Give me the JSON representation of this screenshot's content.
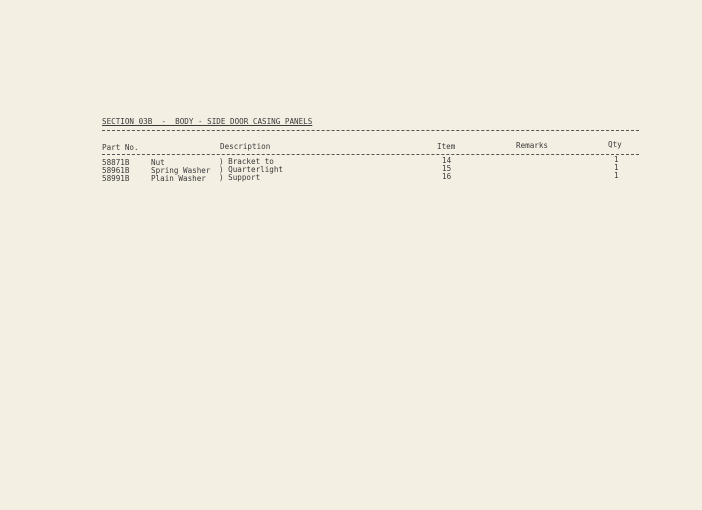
{
  "title": "SECTION 03B  -  BODY - SIDE DOOR CASING PANELS",
  "columns": {
    "part_no": "Part No.",
    "description": "Description",
    "item": "Item",
    "remarks": "Remarks",
    "qty": "Qty"
  },
  "rows": [
    {
      "part_no": "58871B",
      "name": "Nut",
      "desc": ") Bracket to",
      "item": "14",
      "remarks": "",
      "qty": "1"
    },
    {
      "part_no": "58961B",
      "name": "Spring Washer",
      "desc": ") Quarterlight",
      "item": "15",
      "remarks": "",
      "qty": "1"
    },
    {
      "part_no": "58991B",
      "name": "Plain Washer",
      "desc": ") Support",
      "item": "16",
      "remarks": "",
      "qty": "1"
    }
  ]
}
